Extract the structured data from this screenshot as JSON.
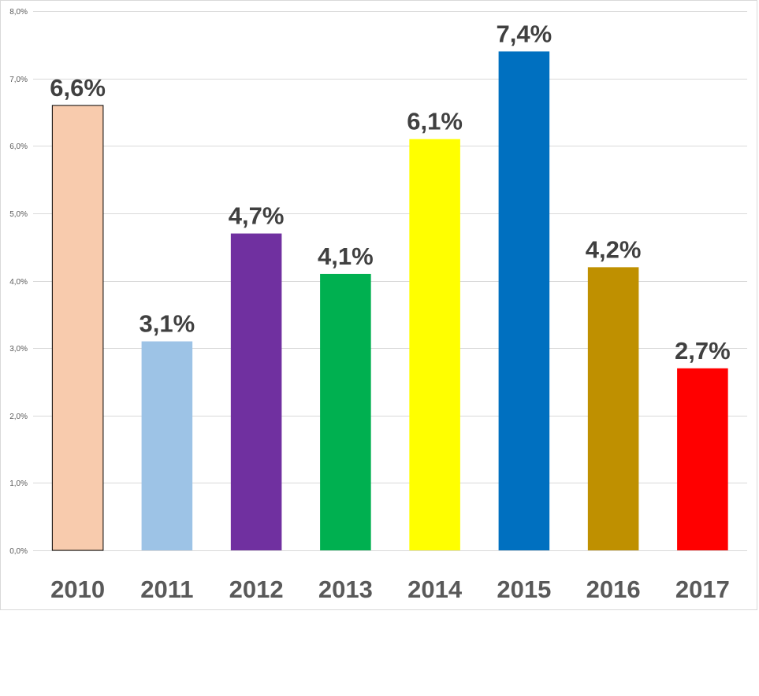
{
  "chart_data": {
    "type": "bar",
    "title": "",
    "xlabel": "",
    "ylabel": "",
    "categories": [
      "2010",
      "2011",
      "2012",
      "2013",
      "2014",
      "2015",
      "2016",
      "2017"
    ],
    "values": [
      6.6,
      3.1,
      4.7,
      4.1,
      6.1,
      7.4,
      4.2,
      2.7
    ],
    "data_labels": [
      "6,6%",
      "3,1%",
      "4,7%",
      "4,1%",
      "6,1%",
      "7,4%",
      "4,2%",
      "2,7%"
    ],
    "bar_colors": [
      "#f8cbad",
      "#9dc3e6",
      "#7030a0",
      "#00b050",
      "#ffff00",
      "#0070c0",
      "#bf9000",
      "#ff0000"
    ],
    "bar_outline_first": "#000000",
    "ylim": [
      0,
      8
    ],
    "yticks": [
      0,
      1,
      2,
      3,
      4,
      5,
      6,
      7,
      8
    ],
    "ytick_labels": [
      "0,0%",
      "1,0%",
      "2,0%",
      "3,0%",
      "4,0%",
      "5,0%",
      "6,0%",
      "7,0%",
      "8,0%"
    ],
    "grid": true,
    "legend": "none"
  }
}
